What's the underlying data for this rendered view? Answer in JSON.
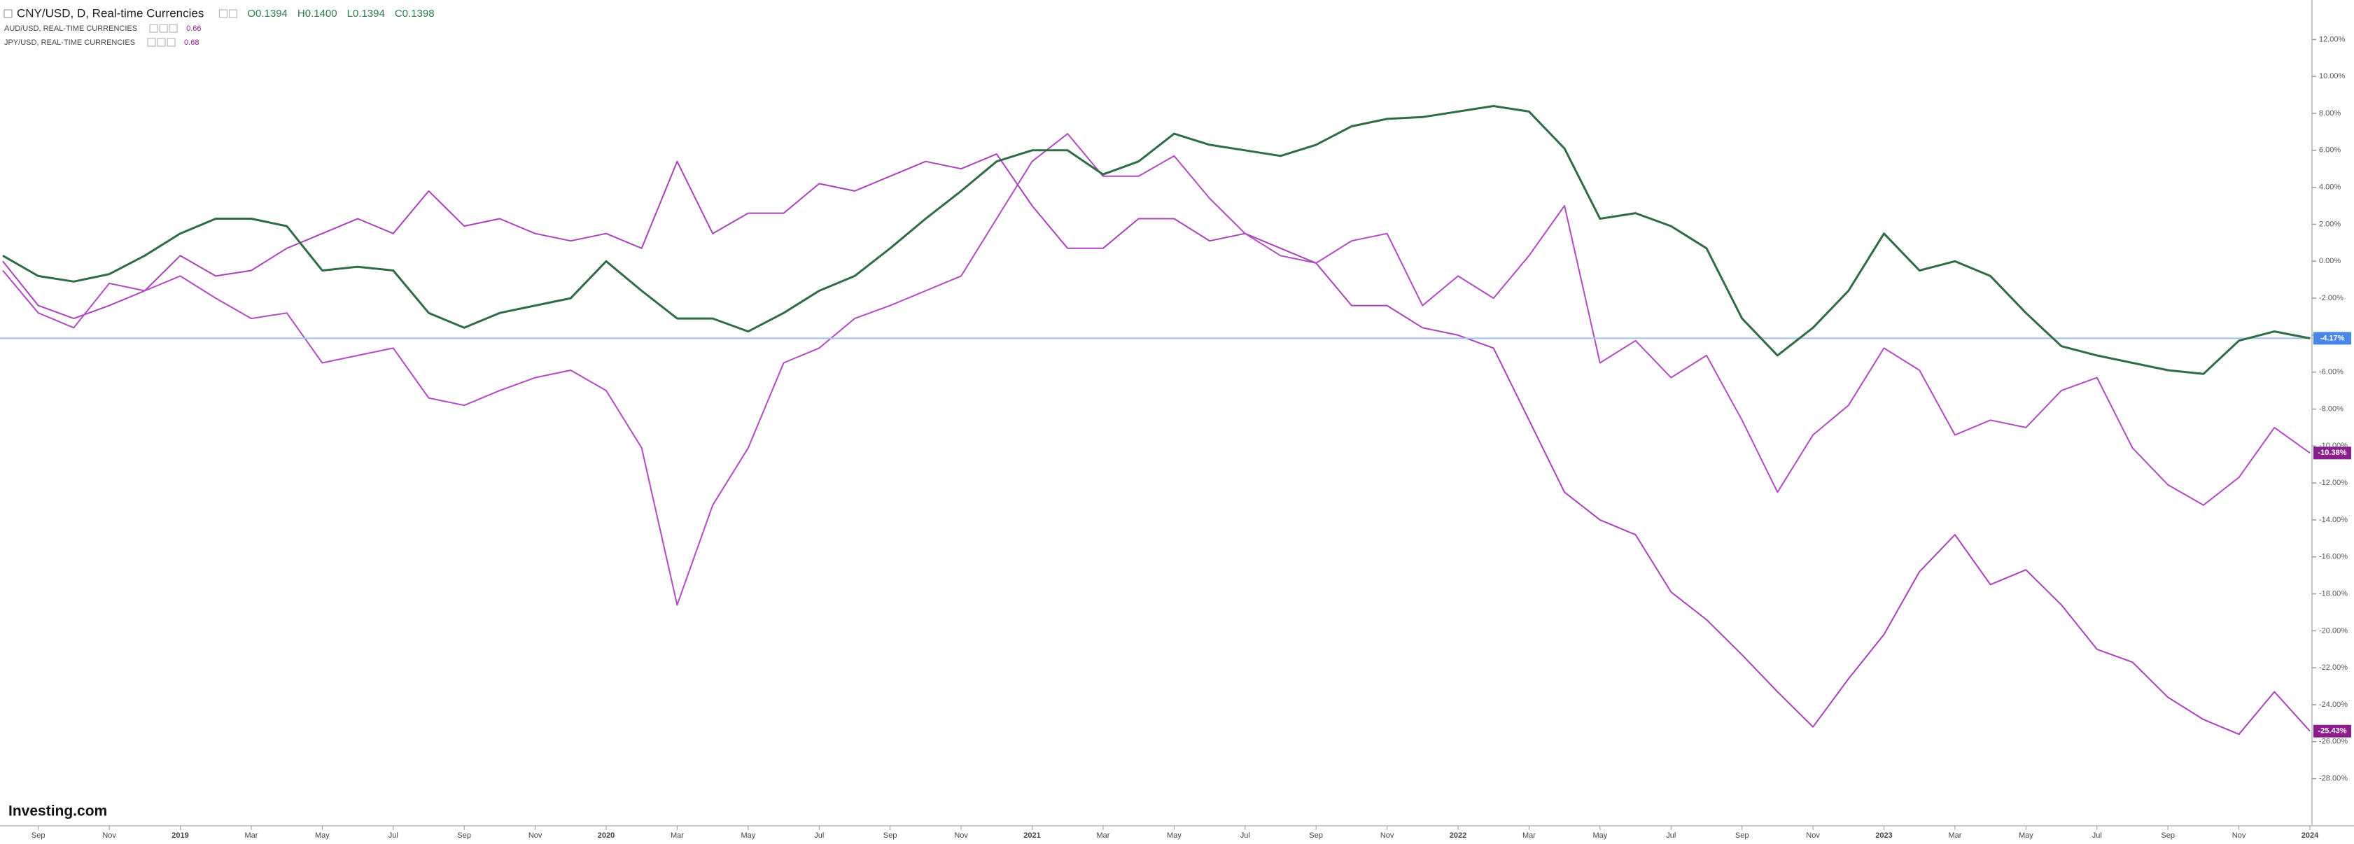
{
  "chart_data": {
    "type": "line",
    "categories": [
      null,
      "Sep",
      null,
      "Nov",
      null,
      "2019",
      null,
      "Mar",
      null,
      "May",
      null,
      "Jul",
      null,
      "Sep",
      null,
      "Nov",
      null,
      "2020",
      null,
      "Mar",
      null,
      "May",
      null,
      "Jul",
      null,
      "Sep",
      null,
      "Nov",
      null,
      "2021",
      null,
      "Mar",
      null,
      "May",
      null,
      "Jul",
      null,
      "Sep",
      null,
      "Nov",
      null,
      "2022",
      null,
      "Mar",
      null,
      "May",
      null,
      "Jul",
      null,
      "Sep",
      null,
      "Nov",
      null,
      "2023",
      null,
      "Mar",
      null,
      "May",
      null,
      "Jul",
      null,
      "Sep",
      null,
      "Nov",
      null,
      "2024"
    ],
    "series": [
      {
        "name": "CNY/USD, D, Real-time Currencies",
        "ohlc": [
          "O0.1394",
          "H0.1400",
          "L0.1394",
          "C0.1398"
        ],
        "color": "#2f6b45",
        "label_color": "#4a86e8",
        "values": [
          0.3,
          -0.8,
          -1.1,
          -0.7,
          0.3,
          1.5,
          2.3,
          2.3,
          1.9,
          -0.5,
          -0.3,
          -0.5,
          -2.8,
          -3.6,
          -2.8,
          -2.4,
          -2.0,
          0.0,
          -1.6,
          -3.1,
          -3.1,
          -3.8,
          -2.8,
          -1.6,
          -0.8,
          0.7,
          2.3,
          3.8,
          5.4,
          6.0,
          6.0,
          4.7,
          5.4,
          6.9,
          6.3,
          6.0,
          5.7,
          6.3,
          7.3,
          7.7,
          7.8,
          8.1,
          8.4,
          8.1,
          6.1,
          2.3,
          2.6,
          1.9,
          0.7,
          -3.1,
          -5.1,
          -3.6,
          -1.6,
          1.5,
          -0.5,
          0.0,
          -0.8,
          -2.8,
          -4.6,
          -5.1,
          -5.5,
          -5.9,
          -6.1,
          -4.3,
          -3.8,
          -4.17
        ],
        "value_labels": [
          null,
          null,
          null,
          null,
          null,
          null,
          null,
          null,
          null,
          null,
          null,
          null,
          null,
          null,
          null,
          null,
          null,
          null,
          null,
          null,
          null,
          null,
          null,
          null,
          null,
          null,
          null,
          null,
          null,
          null,
          null,
          null,
          null,
          null,
          null,
          null,
          null,
          null,
          null,
          null,
          null,
          null,
          null,
          null,
          null,
          null,
          null,
          null,
          null,
          null,
          null,
          null,
          null,
          null,
          null,
          null,
          null,
          null,
          null,
          null,
          null,
          null,
          null,
          null,
          null,
          "-4.17%"
        ]
      },
      {
        "name": "AUD/USD, REAL-TIME CURRENCIES",
        "price": "0.66",
        "color": "#b04cc0",
        "label_color": "#8a1f8c",
        "values": [
          -0.5,
          -2.8,
          -3.6,
          -1.2,
          -1.6,
          -0.8,
          -2.0,
          -3.1,
          -2.8,
          -5.5,
          -5.1,
          -4.7,
          -7.4,
          -7.8,
          -7.0,
          -6.3,
          -5.9,
          -7.0,
          -10.1,
          -18.6,
          -13.2,
          -10.1,
          -5.5,
          -4.7,
          -3.1,
          -2.4,
          -1.6,
          -0.8,
          2.3,
          5.4,
          6.9,
          4.6,
          4.6,
          5.7,
          3.4,
          1.5,
          0.3,
          -0.1,
          1.1,
          1.5,
          -2.4,
          -0.8,
          -2.0,
          0.3,
          3.0,
          -5.5,
          -4.3,
          -6.3,
          -5.1,
          -8.6,
          -12.5,
          -9.4,
          -7.8,
          -4.7,
          -5.9,
          -9.4,
          -8.6,
          -9.0,
          -7.0,
          -6.3,
          -10.1,
          -12.1,
          -13.2,
          -11.7,
          -9.0,
          -10.38
        ],
        "value_labels": [
          null,
          null,
          null,
          null,
          null,
          null,
          null,
          null,
          null,
          null,
          null,
          null,
          null,
          null,
          null,
          null,
          null,
          null,
          null,
          null,
          null,
          null,
          null,
          null,
          null,
          null,
          null,
          null,
          null,
          null,
          null,
          null,
          null,
          null,
          null,
          null,
          null,
          null,
          null,
          null,
          null,
          null,
          null,
          null,
          null,
          null,
          null,
          null,
          null,
          null,
          null,
          null,
          null,
          null,
          null,
          null,
          null,
          null,
          null,
          null,
          null,
          null,
          null,
          null,
          null,
          "-10.38%"
        ]
      },
      {
        "name": "JPY/USD, REAL-TIME CURRENCIES",
        "price": "0.68",
        "color": "#a843b8",
        "label_color": "#8a1f8c",
        "values": [
          0.0,
          -2.4,
          -3.1,
          -2.4,
          -1.6,
          0.3,
          -0.8,
          -0.5,
          0.7,
          1.5,
          2.3,
          1.5,
          3.8,
          1.9,
          2.3,
          1.5,
          1.1,
          1.5,
          0.7,
          5.4,
          1.5,
          2.6,
          2.6,
          4.2,
          3.8,
          4.6,
          5.4,
          5.0,
          5.8,
          3.0,
          0.7,
          0.7,
          2.3,
          2.3,
          1.1,
          1.5,
          0.7,
          -0.1,
          -2.4,
          -2.4,
          -3.6,
          -4.0,
          -4.7,
          -8.6,
          -12.5,
          -14.0,
          -14.8,
          -17.9,
          -19.4,
          -21.3,
          -23.3,
          -25.2,
          -22.6,
          -20.2,
          -16.8,
          -14.8,
          -17.5,
          -16.7,
          -18.6,
          -21.0,
          -21.7,
          -23.6,
          -24.8,
          -25.6,
          -23.3,
          -25.43
        ],
        "value_labels": [
          null,
          null,
          null,
          null,
          null,
          null,
          null,
          null,
          null,
          null,
          null,
          null,
          null,
          null,
          null,
          null,
          null,
          null,
          null,
          null,
          null,
          null,
          null,
          null,
          null,
          null,
          null,
          null,
          null,
          null,
          null,
          null,
          null,
          null,
          null,
          null,
          null,
          null,
          null,
          null,
          null,
          null,
          null,
          null,
          null,
          null,
          null,
          null,
          null,
          null,
          null,
          null,
          null,
          null,
          null,
          null,
          null,
          null,
          null,
          null,
          null,
          null,
          null,
          null,
          null,
          "-25.43%"
        ]
      }
    ],
    "ylim": [
      -29,
      13
    ],
    "yticks": [
      {
        "value": 12,
        "label": "12.00%"
      },
      {
        "value": 10,
        "label": "10.00%"
      },
      {
        "value": 8,
        "label": "8.00%"
      },
      {
        "value": 6,
        "label": "6.00%"
      },
      {
        "value": 4,
        "label": "4.00%"
      },
      {
        "value": 2,
        "label": "2.00%"
      },
      {
        "value": 0,
        "label": "0.00%"
      },
      {
        "value": -2,
        "label": "-2.00%"
      },
      {
        "value": -4,
        "label": "-4.00%"
      },
      {
        "value": -6,
        "label": "-6.00%"
      },
      {
        "value": -8,
        "label": "-8.00%"
      },
      {
        "value": -10,
        "label": "-10.00%"
      },
      {
        "value": -12,
        "label": "-12.00%"
      },
      {
        "value": -14,
        "label": "-14.00%"
      },
      {
        "value": -16,
        "label": "-16.00%"
      },
      {
        "value": -18,
        "label": "-18.00%"
      },
      {
        "value": -20,
        "label": "-20.00%"
      },
      {
        "value": -22,
        "label": "-22.00%"
      },
      {
        "value": -24,
        "label": "-24.00%"
      },
      {
        "value": -26,
        "label": "-26.00%"
      },
      {
        "value": -28,
        "label": "-28.00%"
      }
    ],
    "grid": false
  },
  "logo": "Investing.com"
}
